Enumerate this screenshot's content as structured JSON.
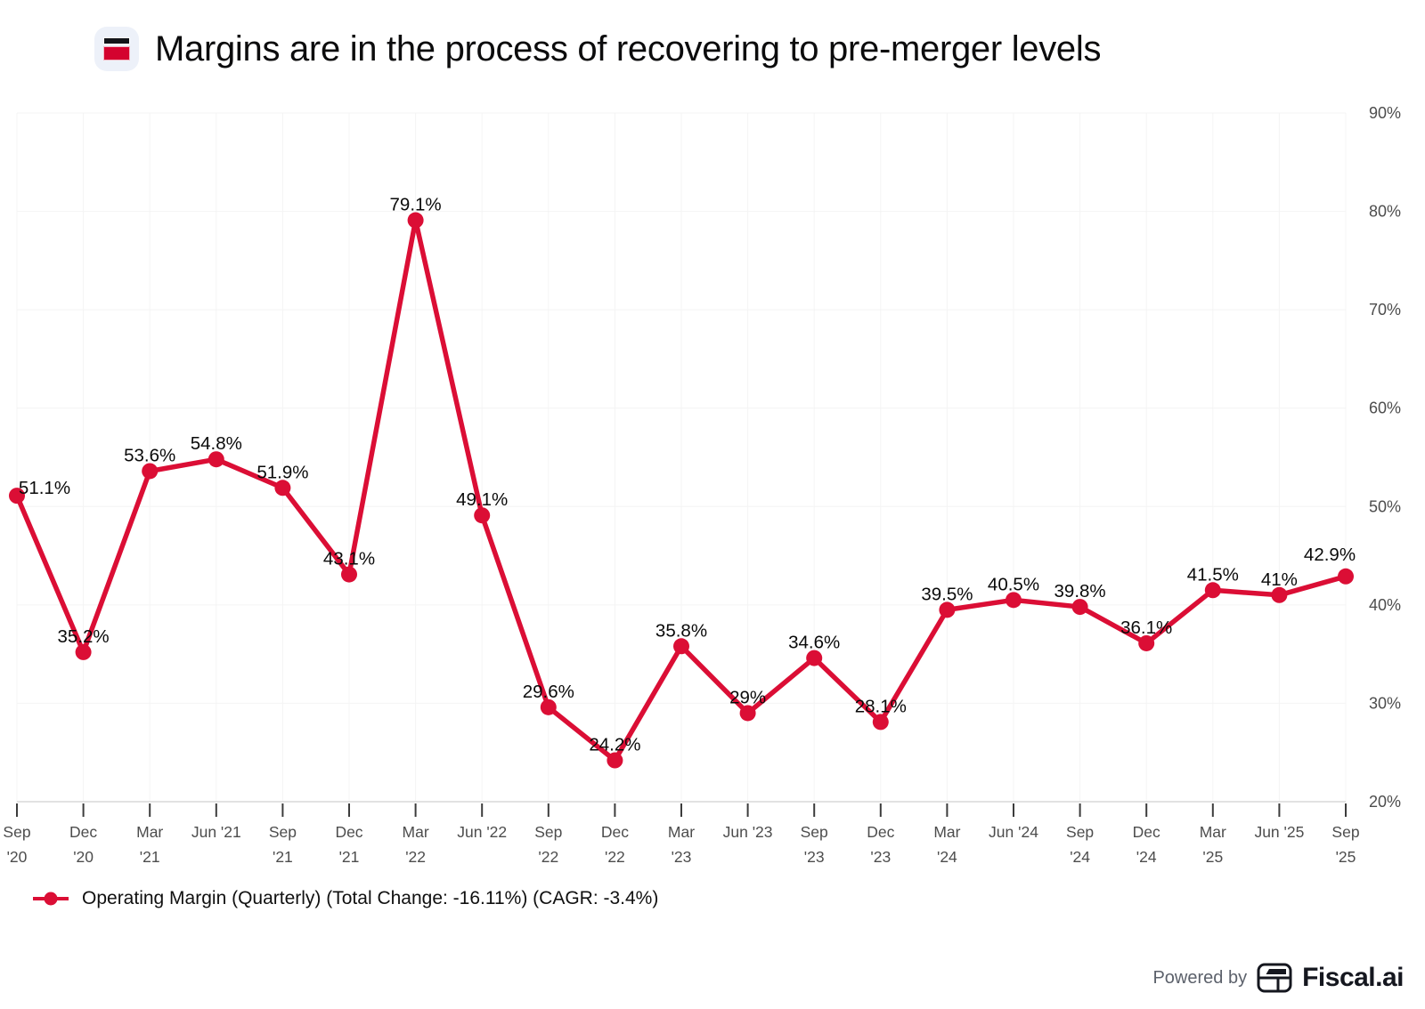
{
  "header": {
    "title": "Margins are in the process of recovering to pre-merger levels",
    "icon": "table-chart-icon"
  },
  "chart_data": {
    "type": "line",
    "title": "Margins are in the process of recovering to pre-merger levels",
    "x": [
      "Sep '20",
      "Dec '20",
      "Mar '21",
      "Jun '21",
      "Sep '21",
      "Dec '21",
      "Mar '22",
      "Jun '22",
      "Sep '22",
      "Dec '22",
      "Mar '23",
      "Jun '23",
      "Sep '23",
      "Dec '23",
      "Mar '24",
      "Jun '24",
      "Sep '24",
      "Dec '24",
      "Mar '25",
      "Jun '25",
      "Sep '25"
    ],
    "series": [
      {
        "name": "Operating Margin (Quarterly)",
        "values": [
          51.1,
          35.2,
          53.6,
          54.8,
          51.9,
          43.1,
          79.1,
          49.1,
          29.6,
          24.2,
          35.8,
          29,
          34.6,
          28.1,
          39.5,
          40.5,
          39.8,
          36.1,
          41.5,
          41,
          42.9
        ],
        "color": "#DB0E35"
      }
    ],
    "unit": "%",
    "ylim": [
      20,
      90
    ],
    "yticks": [
      20,
      30,
      40,
      50,
      60,
      70,
      80,
      90
    ],
    "y_axis_side": "right",
    "grid": true,
    "point_labels": true,
    "legend_position": "bottom-left"
  },
  "legend": {
    "label": "Operating Margin (Quarterly) (Total Change: -16.11%) (CAGR: -3.4%)",
    "marker_color": "#DB0E35"
  },
  "footer": {
    "powered_by": "Powered by",
    "brand": "Fiscal.ai"
  },
  "colors": {
    "accent_red": "#DB0E35",
    "grid": "#f4f4f4",
    "axis_line": "#e2e2e2",
    "tick": "#3c3c3c",
    "tick_label": "#4d4d4d",
    "value_label": "#0a0a0a"
  }
}
